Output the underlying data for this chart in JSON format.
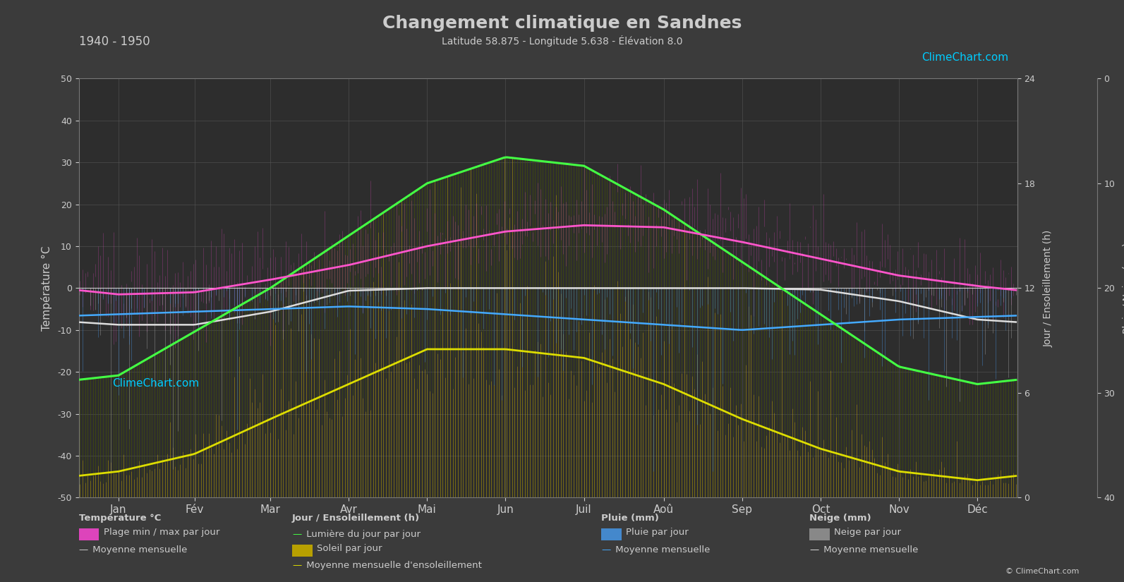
{
  "title": "Changement climatique en Sandnes",
  "subtitle": "Latitude 58.875 - Longitude 5.638 - Élévation 8.0",
  "period": "1940 - 1950",
  "bg_color": "#3b3b3b",
  "plot_bg_color": "#2d2d2d",
  "text_color": "#cccccc",
  "months": [
    "Jan",
    "Fév",
    "Mar",
    "Avr",
    "Mai",
    "Jun",
    "Juil",
    "Aoû",
    "Sep",
    "Oct",
    "Nov",
    "Déc"
  ],
  "days_per_month": [
    31,
    28,
    31,
    30,
    31,
    30,
    31,
    31,
    30,
    31,
    30,
    31
  ],
  "temp_ylim": [
    -50,
    50
  ],
  "daylight_ylim": [
    0,
    24
  ],
  "rain_ylim": [
    0,
    40
  ],
  "temp_yticks": [
    -50,
    -40,
    -30,
    -20,
    -10,
    0,
    10,
    20,
    30,
    40,
    50
  ],
  "daylight_yticks": [
    0,
    6,
    12,
    18,
    24
  ],
  "rain_yticks": [
    0,
    10,
    20,
    30,
    40
  ],
  "temp_mean_monthly": [
    -1.5,
    -1.0,
    2.0,
    5.5,
    10.0,
    13.5,
    15.0,
    14.5,
    11.0,
    7.0,
    3.0,
    0.5
  ],
  "temp_min_monthly": [
    -5.0,
    -5.5,
    -2.0,
    2.0,
    6.5,
    10.5,
    12.5,
    12.0,
    8.5,
    4.5,
    0.5,
    -2.5
  ],
  "temp_max_monthly": [
    3.5,
    3.5,
    7.5,
    10.5,
    15.0,
    18.0,
    19.5,
    19.0,
    15.5,
    11.0,
    6.5,
    3.5
  ],
  "daylight_monthly": [
    7.0,
    9.5,
    12.0,
    15.0,
    18.0,
    19.5,
    19.0,
    16.5,
    13.5,
    10.5,
    7.5,
    6.5
  ],
  "sunshine_monthly": [
    1.2,
    2.5,
    4.5,
    6.5,
    8.5,
    8.0,
    7.5,
    6.5,
    4.5,
    2.8,
    1.5,
    1.0
  ],
  "sunshine_mean_monthly": [
    1.5,
    2.5,
    4.5,
    6.5,
    8.5,
    8.5,
    8.0,
    6.5,
    4.5,
    2.8,
    1.5,
    1.0
  ],
  "rain_daily_mean_monthly": [
    5.5,
    5.0,
    4.5,
    4.0,
    4.5,
    5.5,
    6.5,
    8.0,
    8.5,
    8.0,
    7.0,
    6.5
  ],
  "rain_monthly_mean_monthly": [
    5.0,
    4.5,
    4.0,
    3.5,
    4.0,
    5.0,
    6.0,
    7.0,
    8.0,
    7.0,
    6.0,
    5.5
  ],
  "snow_daily_mean_monthly": [
    8.0,
    8.5,
    5.5,
    1.0,
    0.0,
    0.0,
    0.0,
    0.0,
    0.0,
    0.5,
    3.5,
    7.5
  ],
  "snow_monthly_mean_monthly": [
    7.0,
    7.0,
    4.5,
    0.5,
    0.0,
    0.0,
    0.0,
    0.0,
    0.0,
    0.3,
    2.5,
    6.0
  ]
}
